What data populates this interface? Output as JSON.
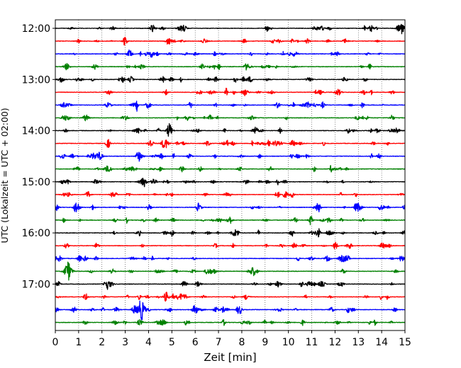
{
  "chart_data": {
    "type": "line",
    "title": "",
    "xlabel": "Zeit  [min]",
    "ylabel": "UTC (Lokalzeit = UTC + 02:00)",
    "xlim": [
      0,
      15
    ],
    "x_ticks": [
      "0",
      "1",
      "2",
      "3",
      "4",
      "5",
      "6",
      "7",
      "8",
      "9",
      "10",
      "11",
      "12",
      "13",
      "14",
      "15"
    ],
    "y_ticks": [
      "12:00",
      "13:00",
      "14:00",
      "15:00",
      "16:00",
      "17:00"
    ],
    "grid": "vertical-dotted",
    "line_colors": [
      "#000000",
      "#ff0000",
      "#0000ff",
      "#008000"
    ],
    "traces": [
      {
        "time": "12:00",
        "color": "#000000"
      },
      {
        "time": "12:15",
        "color": "#ff0000"
      },
      {
        "time": "12:30",
        "color": "#0000ff"
      },
      {
        "time": "12:45",
        "color": "#008000"
      },
      {
        "time": "13:00",
        "color": "#000000"
      },
      {
        "time": "13:15",
        "color": "#ff0000"
      },
      {
        "time": "13:30",
        "color": "#0000ff"
      },
      {
        "time": "13:45",
        "color": "#008000"
      },
      {
        "time": "14:00",
        "color": "#000000"
      },
      {
        "time": "14:15",
        "color": "#ff0000"
      },
      {
        "time": "14:30",
        "color": "#0000ff"
      },
      {
        "time": "14:45",
        "color": "#008000"
      },
      {
        "time": "15:00",
        "color": "#000000"
      },
      {
        "time": "15:15",
        "color": "#ff0000"
      },
      {
        "time": "15:30",
        "color": "#0000ff"
      },
      {
        "time": "15:45",
        "color": "#008000"
      },
      {
        "time": "16:00",
        "color": "#000000"
      },
      {
        "time": "16:15",
        "color": "#ff0000"
      },
      {
        "time": "16:30",
        "color": "#0000ff"
      },
      {
        "time": "16:45",
        "color": "#008000",
        "events_min": [
          0.55
        ]
      },
      {
        "time": "17:00",
        "color": "#000000"
      },
      {
        "time": "17:15",
        "color": "#ff0000"
      },
      {
        "time": "17:30",
        "color": "#0000ff",
        "events_min": [
          3.7
        ]
      },
      {
        "time": "17:45",
        "color": "#008000"
      }
    ]
  }
}
